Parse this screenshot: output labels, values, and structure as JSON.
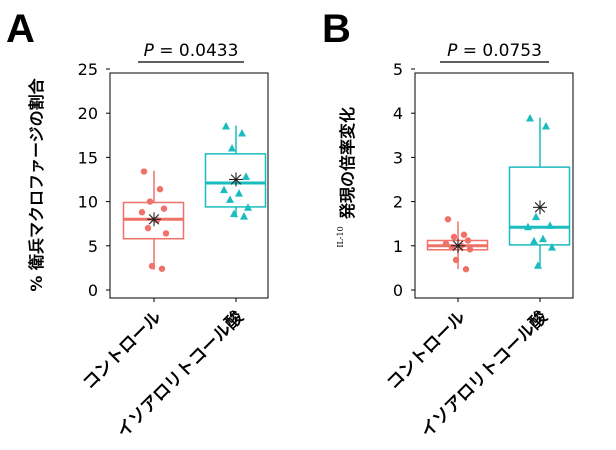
{
  "chart_data": [
    {
      "type": "box",
      "panel": "A",
      "ylabel": "% 衛兵マクロファージの割合",
      "ylim": [
        0,
        25
      ],
      "yticks": [
        0,
        5,
        10,
        15,
        20,
        25
      ],
      "categories": [
        "コントロール",
        "イソアロリトコール酸"
      ],
      "pvalue_label": "P = 0.0433",
      "series": [
        {
          "color": "#ef7168",
          "marker": "circle",
          "q1": 5.8,
          "median": 8.0,
          "q3": 9.9,
          "whisker_low": 2.3,
          "whisker_high": 13.5,
          "mean": 8.0,
          "points": [
            13.4,
            11.4,
            10.0,
            9.2,
            8.8,
            7.9,
            7.0,
            6.4,
            2.7,
            2.4
          ]
        },
        {
          "color": "#1bbcbf",
          "marker": "triangle",
          "q1": 9.4,
          "median": 12.1,
          "q3": 15.4,
          "whisker_low": 8.2,
          "whisker_high": 18.6,
          "mean": 12.5,
          "points": [
            18.5,
            17.7,
            16.0,
            12.8,
            11.3,
            10.9,
            10.2,
            9.3,
            8.6,
            8.3
          ]
        }
      ]
    },
    {
      "type": "box",
      "panel": "B",
      "ylabel_prefix": "IL-10",
      "ylabel": "発現の倍率変化",
      "ylim": [
        0,
        5
      ],
      "yticks": [
        0,
        1,
        2,
        3,
        4,
        5
      ],
      "categories": [
        "コントロール",
        "イソアロリトコール酸"
      ],
      "pvalue_label": "P = 0.0753",
      "series": [
        {
          "color": "#ef7168",
          "marker": "circle",
          "q1": 0.91,
          "median": 1.0,
          "q3": 1.12,
          "whisker_low": 0.47,
          "whisker_high": 1.55,
          "mean": 1.0,
          "points": [
            1.6,
            1.25,
            1.2,
            1.12,
            1.05,
            1.0,
            0.96,
            0.92,
            0.68,
            0.47
          ]
        },
        {
          "color": "#1bbcbf",
          "marker": "triangle",
          "q1": 1.02,
          "median": 1.42,
          "q3": 2.78,
          "whisker_low": 0.55,
          "whisker_high": 3.9,
          "mean": 1.87,
          "points": [
            3.88,
            3.7,
            1.65,
            1.45,
            1.42,
            1.15,
            1.1,
            0.96,
            0.55
          ]
        }
      ]
    }
  ]
}
